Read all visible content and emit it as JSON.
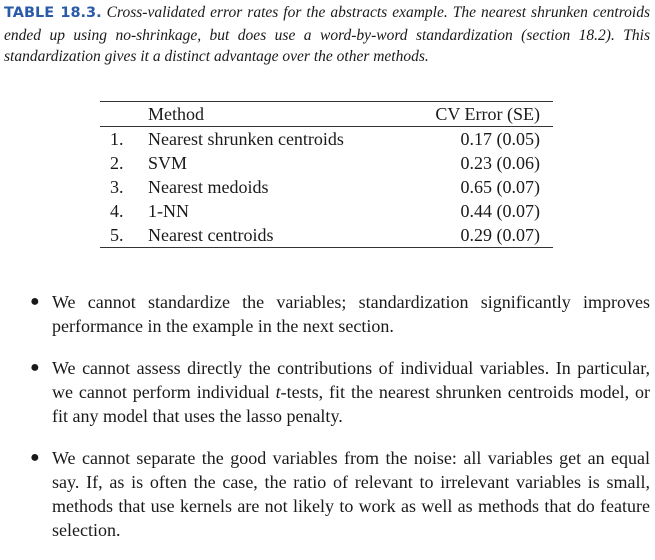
{
  "caption": {
    "label": "TABLE 18.3.",
    "text": "Cross-validated error rates for the abstracts example. The nearest shrunken centroids ended up using no-shrinkage, but does use a word-by-word standardization (section 18.2). This standardization gives it a distinct advantage over the other methods."
  },
  "table": {
    "headers": {
      "num": "",
      "method": "Method",
      "error": "CV Error (SE)"
    },
    "rows": [
      {
        "num": "1.",
        "method": "Nearest shrunken centroids",
        "error": "0.17 (0.05)"
      },
      {
        "num": "2.",
        "method": "SVM",
        "error": "0.23 (0.06)"
      },
      {
        "num": "3.",
        "method": "Nearest medoids",
        "error": "0.65 (0.07)"
      },
      {
        "num": "4.",
        "method": "1-NN",
        "error": "0.44 (0.07)"
      },
      {
        "num": "5.",
        "method": "Nearest centroids",
        "error": "0.29 (0.07)"
      }
    ]
  },
  "bullets": [
    {
      "pre": "We cannot standardize the variables; standardization significantly improves performance in the example in the next section.",
      "italic": "",
      "post": ""
    },
    {
      "pre": "We cannot assess directly the contributions of individual variables. In particular, we cannot perform individual ",
      "italic": "t",
      "post": "-tests, fit the nearest shrunken centroids model, or fit any model that uses the lasso penalty."
    },
    {
      "pre": "We cannot separate the good variables from the noise: all variables get an equal say. If, as is often the case, the ratio of relevant to irrelevant variables is small, methods that use kernels are not likely to work as well as methods that do feature selection.",
      "italic": "",
      "post": ""
    }
  ]
}
